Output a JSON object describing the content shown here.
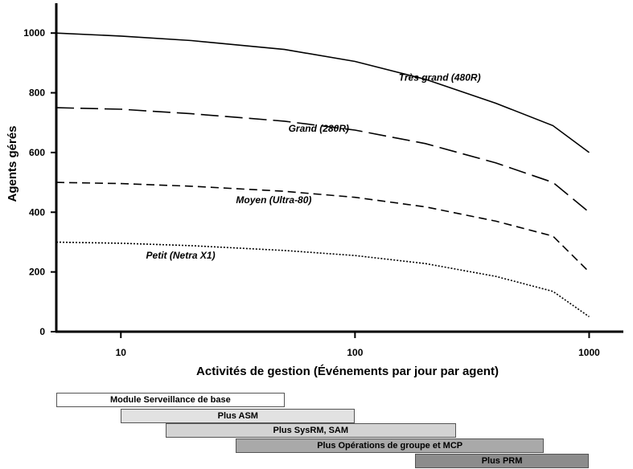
{
  "chart_data": {
    "type": "line",
    "xlabel": "Activités de gestion (Événements par jour par agent)",
    "ylabel": "Agents gérés",
    "x_scale": "log",
    "xlim": [
      5.3,
      1400
    ],
    "ylim": [
      0,
      1100
    ],
    "xticks": [
      10,
      100,
      1000
    ],
    "xtick_labels": [
      "10",
      "100",
      "1000"
    ],
    "yticks": [
      0,
      200,
      400,
      600,
      800,
      1000
    ],
    "ytick_labels": [
      "0",
      "200",
      "400",
      "600",
      "800",
      "1000"
    ],
    "grid": false,
    "series": [
      {
        "name": "Très grand (480R)",
        "style": "solid",
        "x": [
          5.3,
          10,
          20,
          50,
          100,
          200,
          400,
          700,
          1000
        ],
        "y": [
          1000,
          990,
          975,
          945,
          905,
          845,
          765,
          690,
          600
        ]
      },
      {
        "name": "Grand (280R)",
        "style": "longdash",
        "x": [
          5.3,
          10,
          20,
          50,
          100,
          200,
          400,
          700,
          1000
        ],
        "y": [
          750,
          745,
          730,
          705,
          675,
          630,
          565,
          500,
          400
        ]
      },
      {
        "name": "Moyen (Ultra-80)",
        "style": "dash",
        "x": [
          5.3,
          10,
          20,
          50,
          100,
          200,
          400,
          700,
          1000
        ],
        "y": [
          500,
          496,
          487,
          470,
          450,
          418,
          370,
          320,
          200
        ]
      },
      {
        "name": "Petit (Netra X1)",
        "style": "dot",
        "x": [
          5.3,
          10,
          20,
          50,
          100,
          200,
          400,
          700,
          1000
        ],
        "y": [
          300,
          296,
          288,
          272,
          255,
          228,
          185,
          135,
          50
        ]
      }
    ],
    "series_label_positions": [
      {
        "x": 230,
        "y": 840
      },
      {
        "x": 70,
        "y": 670
      },
      {
        "x": 45,
        "y": 430
      },
      {
        "x": 18,
        "y": 245
      }
    ]
  },
  "feature_bands": [
    {
      "label": "Module Serveillance de base",
      "x_start": 5.3,
      "x_end": 50,
      "fill": "#ffffff"
    },
    {
      "label": "Plus ASM",
      "x_start": 10,
      "x_end": 100,
      "fill": "#e2e2e2"
    },
    {
      "label": "Plus SysRM, SAM",
      "x_start": 15.5,
      "x_end": 270,
      "fill": "#d3d3d3"
    },
    {
      "label": "Plus Opérations de groupe et MCP",
      "x_start": 31,
      "x_end": 640,
      "fill": "#a9a9a9"
    },
    {
      "label": "Plus PRM",
      "x_start": 180,
      "x_end": 1000,
      "fill": "#8c8c8c"
    }
  ]
}
